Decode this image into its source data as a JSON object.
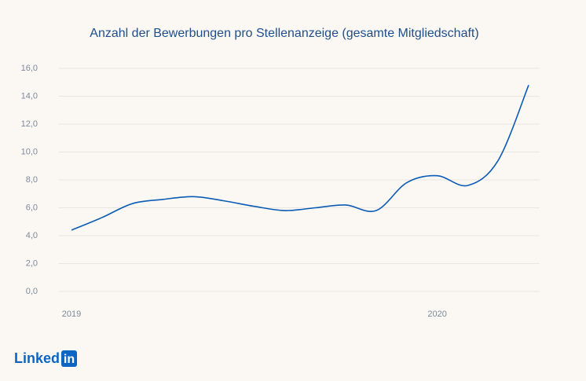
{
  "chart_data": {
    "type": "line",
    "title": "Anzahl der Bewerbungen pro Stellenanzeige (gesamte Mitgliedschaft)",
    "categories": [
      "2019",
      null,
      null,
      null,
      null,
      null,
      null,
      null,
      null,
      null,
      null,
      null,
      "2020",
      null,
      null,
      null
    ],
    "series": [
      {
        "name": null,
        "color": "#0a5bb5",
        "values": [
          4.4,
          5.3,
          6.3,
          6.6,
          6.8,
          6.5,
          6.1,
          5.8,
          6.0,
          6.2,
          5.8,
          7.8,
          8.3,
          7.6,
          9.4,
          14.8
        ]
      }
    ],
    "ylim": [
      0,
      16
    ],
    "yticks": [
      {
        "value": 0,
        "label": "0,0"
      },
      {
        "value": 2,
        "label": "2,0"
      },
      {
        "value": 4,
        "label": "4,0"
      },
      {
        "value": 6,
        "label": "6,0"
      },
      {
        "value": 8,
        "label": "8,0"
      },
      {
        "value": 10,
        "label": "10,0"
      },
      {
        "value": 12,
        "label": "12,0"
      },
      {
        "value": 14,
        "label": "14,0"
      },
      {
        "value": 16,
        "label": "16,0"
      }
    ],
    "grid": true
  },
  "logo": {
    "text": "Linked",
    "badge": "in"
  }
}
